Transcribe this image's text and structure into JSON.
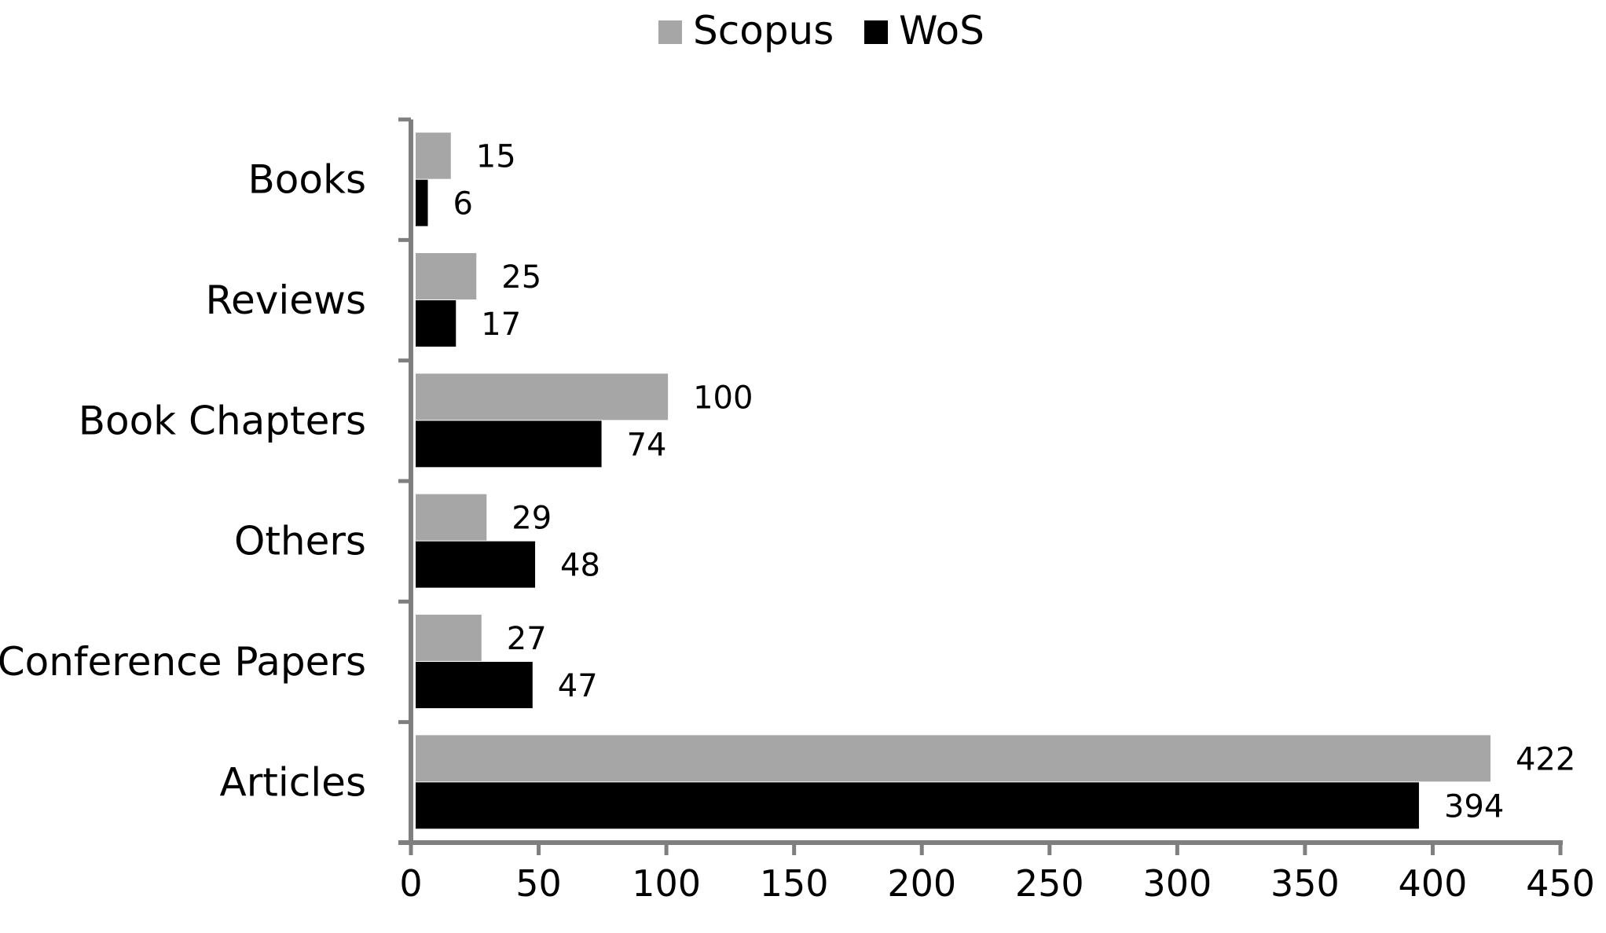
{
  "chart_data": {
    "type": "bar",
    "orientation": "horizontal",
    "categories": [
      "Books",
      "Reviews",
      "Book Chapters",
      "Others",
      "Conference Papers",
      "Articles"
    ],
    "series": [
      {
        "name": "Scopus",
        "values": [
          15,
          25,
          100,
          29,
          27,
          422
        ],
        "color": "#a6a6a6"
      },
      {
        "name": "WoS",
        "values": [
          6,
          17,
          74,
          48,
          47,
          394
        ],
        "color": "#000000"
      }
    ],
    "x_ticks": [
      "0",
      "50",
      "100",
      "150",
      "200",
      "250",
      "300",
      "350",
      "400",
      "450"
    ],
    "xlim": [
      0,
      450
    ],
    "title": "",
    "xlabel": "",
    "ylabel": "",
    "grid": false,
    "legend_position": "top-center",
    "data_labels": true
  }
}
